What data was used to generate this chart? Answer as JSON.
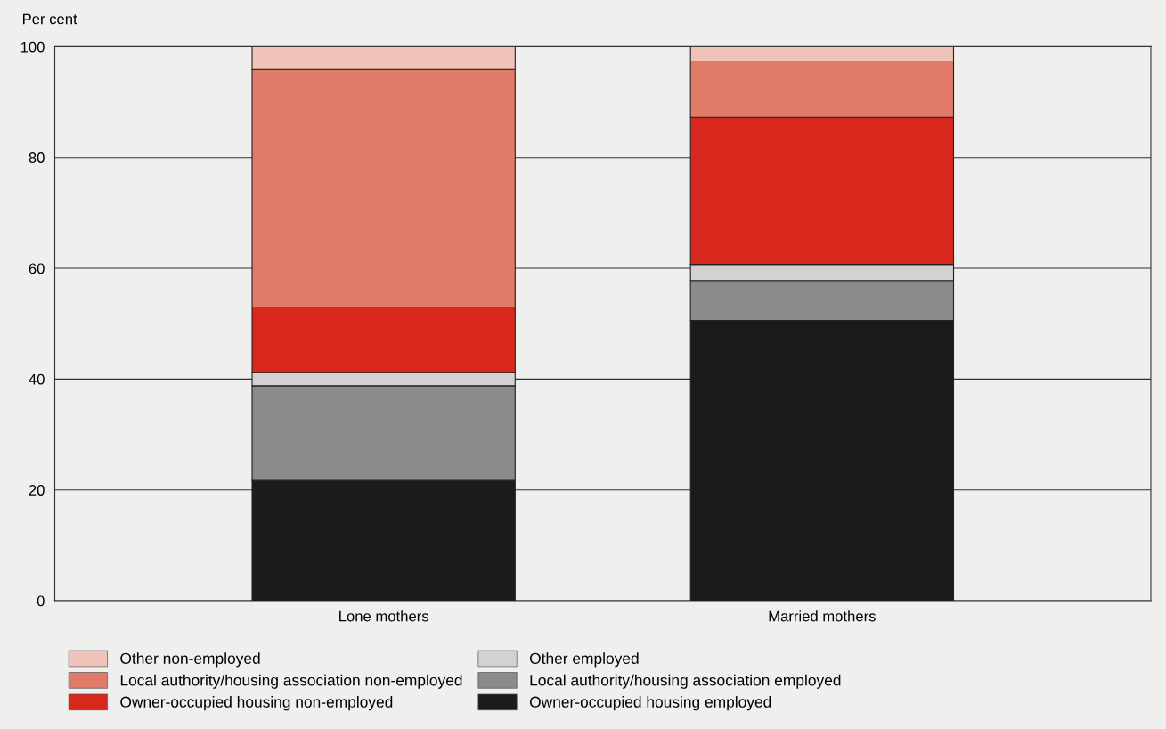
{
  "chart_data": {
    "type": "bar",
    "stacked": true,
    "ylabel": "Per cent",
    "categories": [
      "Lone mothers",
      "Married mothers"
    ],
    "series": [
      {
        "name": "Owner-occupied housing employed",
        "color": "#1c1a1a",
        "values": [
          21.7,
          50.6
        ]
      },
      {
        "name": "Local authority/housing association employed",
        "color": "#8c8a8a",
        "values": [
          17.1,
          7.2
        ]
      },
      {
        "name": "Other employed",
        "color": "#d4d2d0",
        "values": [
          2.4,
          2.9
        ]
      },
      {
        "name": "Owner-occupied housing non-employed",
        "color": "#d8281e",
        "values": [
          11.8,
          26.6
        ]
      },
      {
        "name": "Local authority/housing association non-employed",
        "color": "#e27a6a",
        "values": [
          43.0,
          10.1
        ]
      },
      {
        "name": "Other non-employed",
        "color": "#efc2ba",
        "values": [
          4.0,
          2.6
        ]
      }
    ],
    "ylim": [
      0,
      100
    ],
    "yticks": [
      0,
      20,
      40,
      60,
      80,
      100
    ],
    "grid": "y",
    "legend": "bottom"
  }
}
